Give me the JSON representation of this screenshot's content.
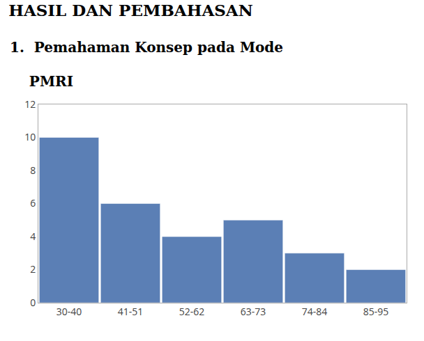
{
  "chart_data": {
    "type": "bar",
    "title": "HASIL DAN PEMBAHASAN",
    "annotations": [
      "1.  Pemahaman Konsep pada Mode",
      "    PMRI"
    ],
    "categories": [
      "30-40",
      "41-51",
      "52-62",
      "63-73",
      "74-84",
      "85-95"
    ],
    "values": [
      10,
      6,
      4,
      5,
      3,
      2
    ],
    "color": "#5b7fb5",
    "ylim": [
      0,
      12
    ],
    "yticks": [
      0,
      2,
      4,
      6,
      8,
      10,
      12
    ],
    "grid": false
  }
}
